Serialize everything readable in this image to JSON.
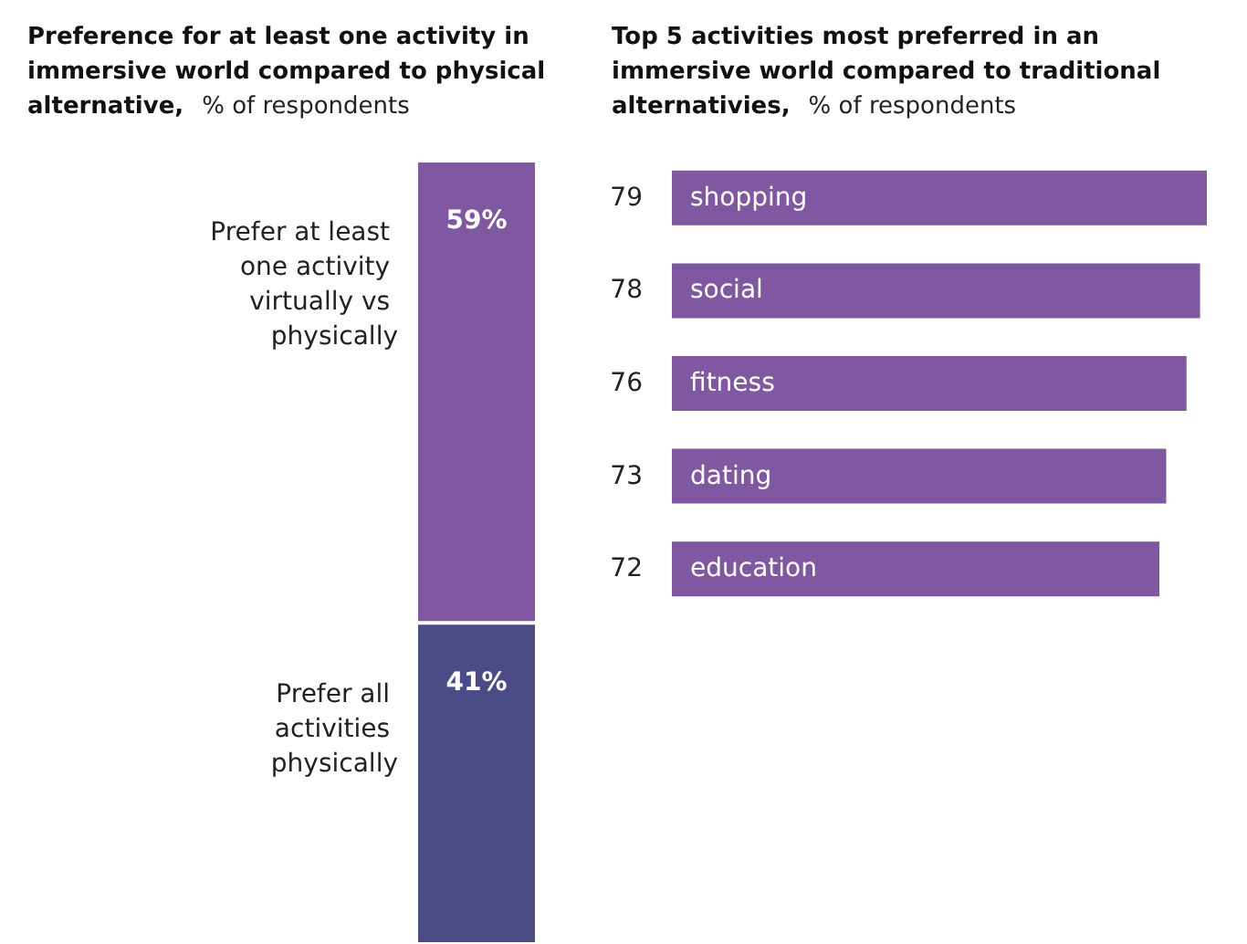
{
  "chart_data": [
    {
      "type": "bar",
      "stacked": true,
      "title": "Preference for at least one activity in immersive world compared to physical alternative,",
      "subtitle": "% of respondents",
      "categories": [
        null
      ],
      "series": [
        {
          "name": "Prefer all activities physically",
          "color": "#4b4c86",
          "values": [
            41
          ],
          "value_labels": [
            "41%"
          ]
        },
        {
          "name": "Prefer at least one activity virtually vs physically",
          "color": "#7f58a1",
          "values": [
            59
          ],
          "value_labels": [
            "59%"
          ]
        }
      ]
    },
    {
      "type": "bar",
      "orientation": "horizontal",
      "title": "Top 5 activities most preferred in an immersive world compared to traditional alternativies,",
      "subtitle": "% of respondents",
      "categories": [
        "shopping",
        "social",
        "fitness",
        "dating",
        "education"
      ],
      "values": [
        79,
        78,
        76,
        73,
        72
      ],
      "color": "#7f58a1",
      "data_labels": true
    }
  ]
}
